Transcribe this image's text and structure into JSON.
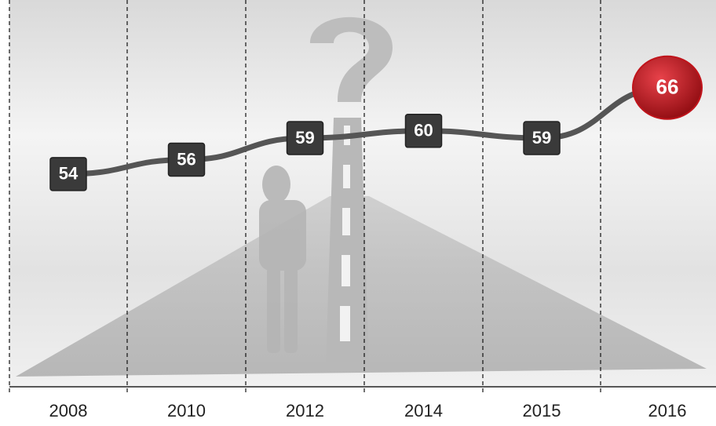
{
  "chart_data": {
    "type": "line",
    "categories": [
      "2008",
      "2010",
      "2012",
      "2014",
      "2015",
      "2016"
    ],
    "values": [
      54,
      56,
      59,
      60,
      59,
      66
    ],
    "color": "#555555",
    "marker_color": "#3a3a3a",
    "highlight_color": "#c0141b"
  }
}
